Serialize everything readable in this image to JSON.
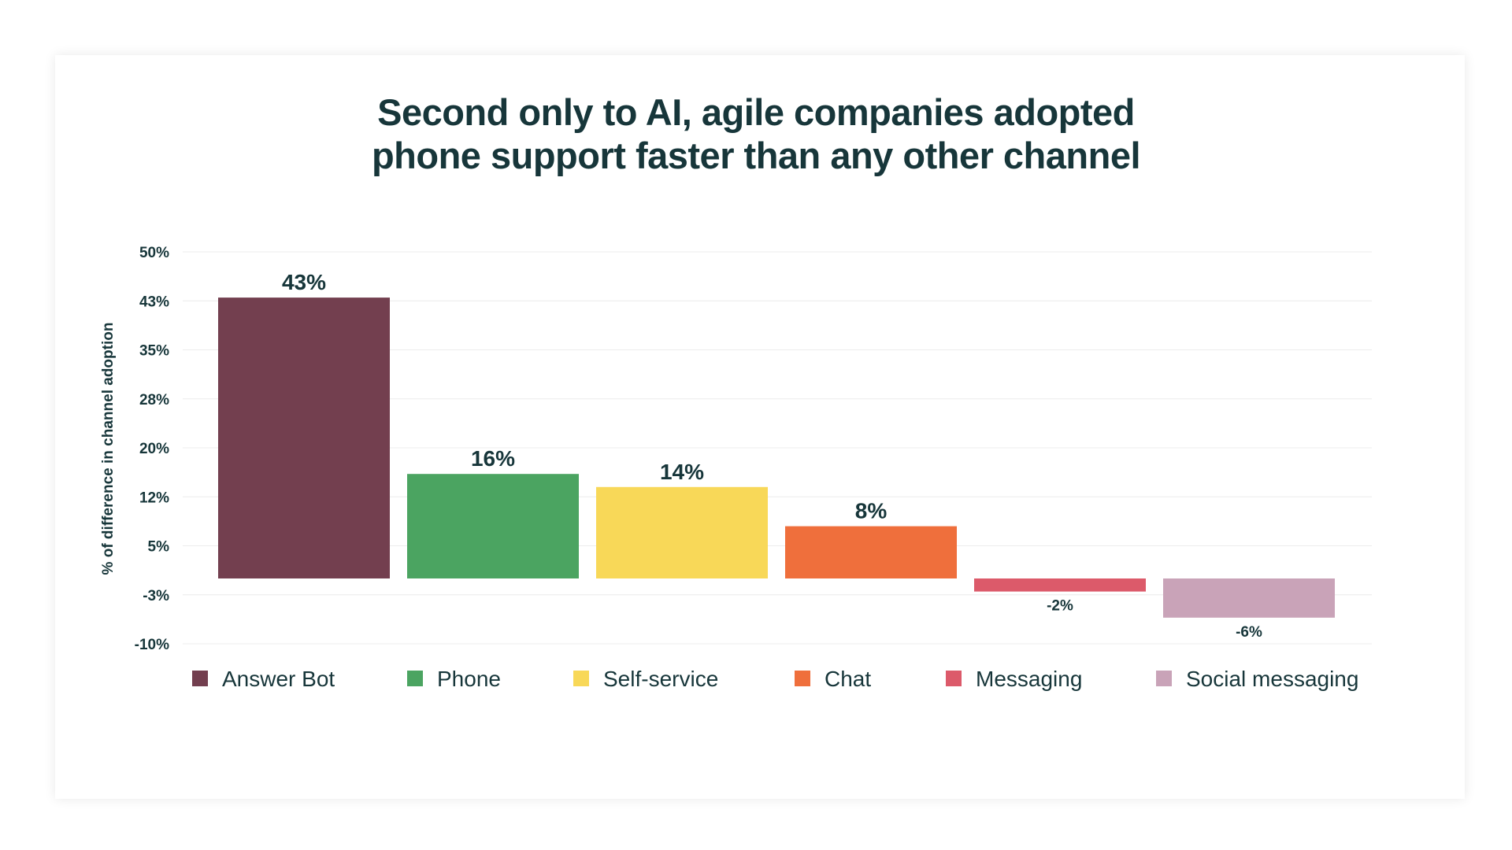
{
  "chart_data": {
    "type": "bar",
    "title_lines": [
      "Second only to AI, agile companies adopted",
      "phone support faster than any other channel"
    ],
    "ylabel": "% of difference in channel adoption",
    "xlabel": "",
    "ylim": [
      -10,
      50
    ],
    "y_tick_labels": [
      "50%",
      "43%",
      "35%",
      "28%",
      "20%",
      "12%",
      "5%",
      "-3%",
      "-10%"
    ],
    "grid": true,
    "legend_position": "bottom",
    "categories": [
      "Answer Bot",
      "Phone",
      "Self-service",
      "Chat",
      "Messaging",
      "Social messaging"
    ],
    "values": [
      43,
      16,
      14,
      8,
      -2,
      -6
    ],
    "value_labels": [
      "43%",
      "16%",
      "14%",
      "8%",
      "-2%",
      "-6%"
    ],
    "colors": [
      "#733f4f",
      "#4ba461",
      "#f8d858",
      "#ef6f3c",
      "#dc5a6a",
      "#c9a3b8"
    ]
  }
}
